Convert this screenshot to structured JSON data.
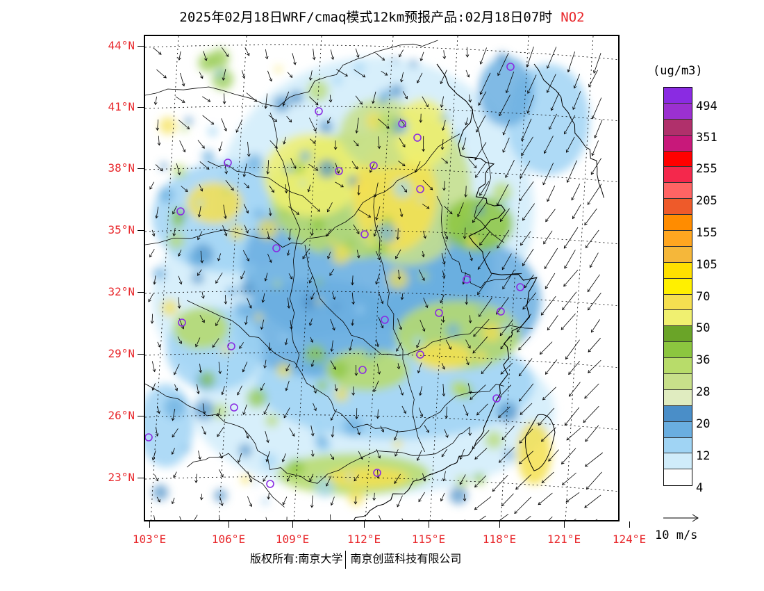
{
  "title": {
    "main": "2025年02月18日WRF/cmaq模式12km预报产品:02月18日07时",
    "species": "NO2",
    "species_color": "#e8262a"
  },
  "axes": {
    "lat_labels": [
      "44°N",
      "41°N",
      "38°N",
      "35°N",
      "32°N",
      "29°N",
      "26°N",
      "23°N"
    ],
    "lon_labels": [
      "103°E",
      "106°E",
      "109°E",
      "112°E",
      "115°E",
      "118°E",
      "121°E",
      "124°E"
    ],
    "label_color": "#e8262a"
  },
  "colorbar": {
    "unit": "(ug/m3)",
    "colors": [
      "#8a2be2",
      "#9b30d0",
      "#b0306b",
      "#c8187a",
      "#ff0000",
      "#f4284c",
      "#ff6464",
      "#ee5a2a",
      "#ff8c00",
      "#ffa620",
      "#f5b73a",
      "#ffe000",
      "#fff000",
      "#f5e050",
      "#f0f070",
      "#6aa428",
      "#8cc63f",
      "#b8dc6a",
      "#c8e08a",
      "#e0ecc0",
      "#4a8ec8",
      "#6aaee0",
      "#a0d4f4",
      "#d0ecfa",
      "#ffffff"
    ],
    "labels": [
      "494",
      "351",
      "255",
      "205",
      "155",
      "105",
      "70",
      "50",
      "36",
      "28",
      "20",
      "12",
      "4"
    ]
  },
  "wind_reference": {
    "label": "10 m/s"
  },
  "cities": [
    "marker",
    "marker",
    "marker",
    "marker",
    "marker",
    "marker",
    "marker",
    "marker",
    "marker",
    "marker",
    "marker",
    "marker",
    "marker",
    "marker",
    "marker",
    "marker",
    "marker",
    "marker",
    "marker",
    "marker",
    "marker",
    "marker",
    "marker",
    "marker",
    "marker"
  ],
  "footer": {
    "left": "版权所有:南京大学",
    "right": "南京创蓝科技有限公司"
  }
}
